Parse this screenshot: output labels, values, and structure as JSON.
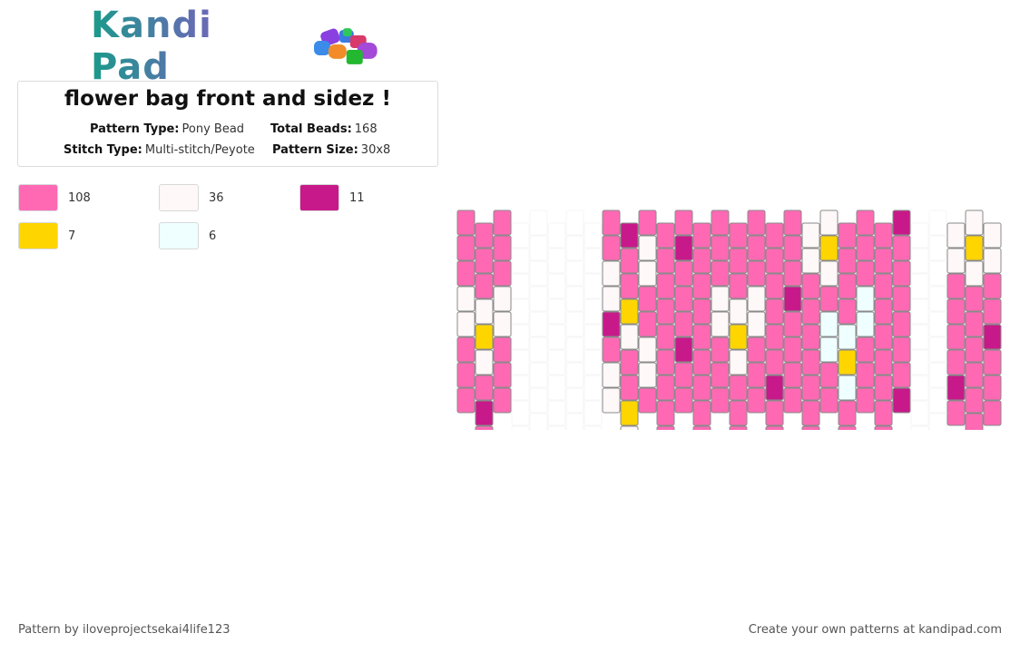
{
  "brand": {
    "name": "Kandi Pad",
    "logo_icon": "bead-pile-icon"
  },
  "pattern": {
    "title": "flower bag front and sidez !",
    "meta": {
      "type_label": "Pattern Type:",
      "type_value": "Pony Bead",
      "beads_label": "Total Beads:",
      "beads_value": "168",
      "stitch_label": "Stitch Type:",
      "stitch_value": "Multi-stitch/Peyote",
      "size_label": "Pattern Size:",
      "size_value": "30x8"
    }
  },
  "colors": {
    "pink": "#ff69b4",
    "white": "#fff8f8",
    "magenta": "#c8198a",
    "yellow": "#ffd500",
    "icewhite": "#efffff",
    "ghost": "#f6f6f6"
  },
  "legend": [
    {
      "color": "#ff69b4",
      "count": "108"
    },
    {
      "color": "#fff8f8",
      "count": "36"
    },
    {
      "color": "#c8198a",
      "count": "11"
    },
    {
      "color": "#ffd500",
      "count": "7"
    },
    {
      "color": "#efffff",
      "count": "6"
    }
  ],
  "grid": {
    "columns": 30,
    "column_values": [
      "PPPWWPPP",
      "PPPWYWPMP",
      "PPPWWPPP",
      "",
      "",
      "",
      "",
      "",
      "PPWWMPWW",
      "MPPYWPPYWP",
      "PWWPPWWP",
      "PPPPPPPPP",
      "PMPPPMPP",
      "PPPPPPPPP",
      "PPPWWPPP",
      "PPPWYWPPP",
      "PPPWWPPP",
      "PPPPPPMPP",
      "PPPMPPPP",
      "WWPPPPPPP",
      "WYWPIIPP",
      "PPPPIYIPP",
      "PPPIIPPP",
      "PPPPPPPPP",
      "MPPPPPPM",
      "",
      "",
      "WWPPPPMP",
      "WYWPPPPPP",
      "WWPPMPPP"
    ]
  },
  "footer": {
    "left": "Pattern by iloveprojectsekai4life123",
    "right": "Create your own patterns at kandipad.com"
  }
}
